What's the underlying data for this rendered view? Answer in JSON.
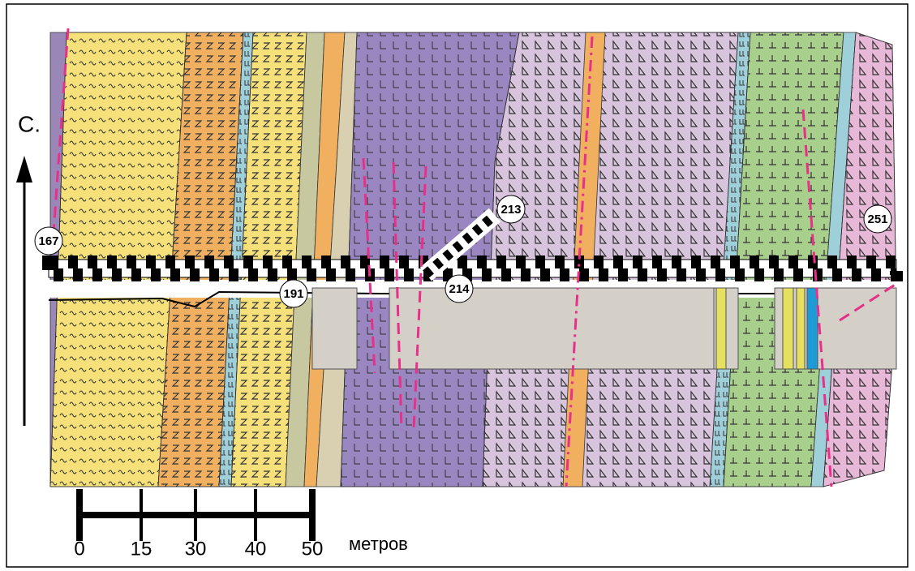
{
  "map": {
    "north_label": "С.",
    "points": [
      "167",
      "191",
      "213",
      "214",
      "251"
    ],
    "scale": {
      "labels": [
        "0",
        "15",
        "30",
        "40",
        "50"
      ],
      "unit": "метров"
    }
  }
}
